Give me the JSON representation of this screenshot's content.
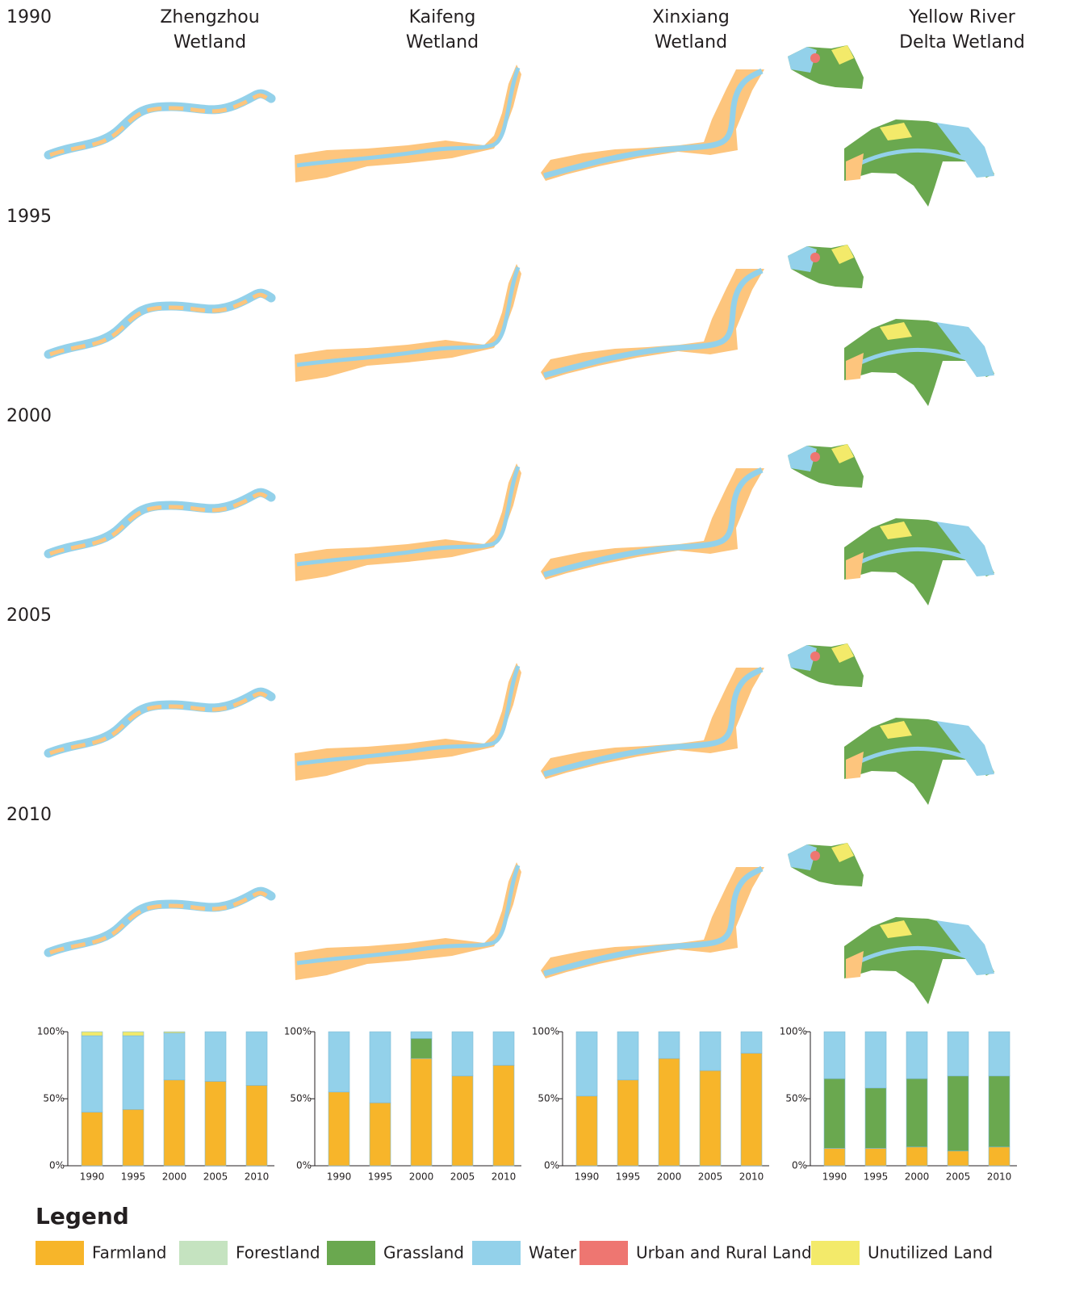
{
  "row_labels": [
    "1990",
    "1995",
    "2000",
    "2005",
    "2010"
  ],
  "columns": [
    {
      "title": [
        "Zhengzhou",
        "Wetland"
      ]
    },
    {
      "title": [
        "Kaifeng",
        "Wetland"
      ]
    },
    {
      "title": [
        "Xinxiang",
        "Wetland"
      ]
    },
    {
      "title": [
        "Yellow River",
        "Delta Wetland"
      ]
    }
  ],
  "legend_title": "Legend",
  "chart_data": [
    {
      "type": "bar",
      "stacked": true,
      "categories": [
        "1990",
        "1995",
        "2000",
        "2005",
        "2010"
      ],
      "ylim": [
        0,
        100
      ],
      "yticks": [
        {
          "value": 0,
          "label": "0%"
        },
        {
          "value": 50,
          "label": "50%"
        },
        {
          "value": 100,
          "label": "100%"
        }
      ],
      "series": [
        {
          "name": "Farmland",
          "color": "#f7b52a",
          "values": [
            40,
            42,
            64,
            63,
            60
          ]
        },
        {
          "name": "Forestland",
          "color": "#c5e3c0",
          "values": [
            0,
            0,
            0,
            0,
            0
          ]
        },
        {
          "name": "Grassland",
          "color": "#6aa84f",
          "values": [
            0,
            0,
            0,
            0,
            0
          ]
        },
        {
          "name": "Water",
          "color": "#93d1ea",
          "values": [
            57,
            55,
            35,
            37,
            40
          ]
        },
        {
          "name": "Urban and Rural Land",
          "color": "#ee7671",
          "values": [
            0,
            0,
            0,
            0,
            0
          ]
        },
        {
          "name": "Unutilized Land",
          "color": "#f3ea6a",
          "values": [
            3,
            3,
            1,
            0,
            0
          ]
        }
      ]
    },
    {
      "type": "bar",
      "stacked": true,
      "categories": [
        "1990",
        "1995",
        "2000",
        "2005",
        "2010"
      ],
      "ylim": [
        0,
        100
      ],
      "yticks": [
        {
          "value": 0,
          "label": "0%"
        },
        {
          "value": 50,
          "label": "50%"
        },
        {
          "value": 100,
          "label": "100%"
        }
      ],
      "series": [
        {
          "name": "Farmland",
          "color": "#f7b52a",
          "values": [
            55,
            47,
            80,
            67,
            75
          ]
        },
        {
          "name": "Forestland",
          "color": "#c5e3c0",
          "values": [
            0,
            0,
            0,
            0,
            0
          ]
        },
        {
          "name": "Grassland",
          "color": "#6aa84f",
          "values": [
            0,
            0,
            15,
            0,
            0
          ]
        },
        {
          "name": "Water",
          "color": "#93d1ea",
          "values": [
            45,
            53,
            5,
            33,
            25
          ]
        },
        {
          "name": "Urban and Rural Land",
          "color": "#ee7671",
          "values": [
            0,
            0,
            0,
            0,
            0
          ]
        },
        {
          "name": "Unutilized Land",
          "color": "#f3ea6a",
          "values": [
            0,
            0,
            0,
            0,
            0
          ]
        }
      ]
    },
    {
      "type": "bar",
      "stacked": true,
      "categories": [
        "1990",
        "1995",
        "2000",
        "2005",
        "2010"
      ],
      "ylim": [
        0,
        100
      ],
      "yticks": [
        {
          "value": 0,
          "label": "0%"
        },
        {
          "value": 50,
          "label": "50%"
        },
        {
          "value": 100,
          "label": "100%"
        }
      ],
      "series": [
        {
          "name": "Farmland",
          "color": "#f7b52a",
          "values": [
            52,
            64,
            80,
            71,
            84
          ]
        },
        {
          "name": "Forestland",
          "color": "#c5e3c0",
          "values": [
            0,
            0,
            0,
            0,
            0
          ]
        },
        {
          "name": "Grassland",
          "color": "#6aa84f",
          "values": [
            0,
            0,
            0,
            0,
            0
          ]
        },
        {
          "name": "Water",
          "color": "#93d1ea",
          "values": [
            48,
            36,
            20,
            29,
            16
          ]
        },
        {
          "name": "Urban and Rural Land",
          "color": "#ee7671",
          "values": [
            0,
            0,
            0,
            0,
            0
          ]
        },
        {
          "name": "Unutilized Land",
          "color": "#f3ea6a",
          "values": [
            0,
            0,
            0,
            0,
            0
          ]
        }
      ]
    },
    {
      "type": "bar",
      "stacked": true,
      "categories": [
        "1990",
        "1995",
        "2000",
        "2005",
        "2010"
      ],
      "ylim": [
        0,
        100
      ],
      "yticks": [
        {
          "value": 0,
          "label": "0%"
        },
        {
          "value": 50,
          "label": "50%"
        },
        {
          "value": 100,
          "label": "100%"
        }
      ],
      "series": [
        {
          "name": "Farmland",
          "color": "#f7b52a",
          "values": [
            13,
            13,
            14,
            11,
            14
          ]
        },
        {
          "name": "Forestland",
          "color": "#c5e3c0",
          "values": [
            0,
            0,
            0,
            0,
            0
          ]
        },
        {
          "name": "Grassland",
          "color": "#6aa84f",
          "values": [
            52,
            45,
            51,
            56,
            53
          ]
        },
        {
          "name": "Water",
          "color": "#93d1ea",
          "values": [
            35,
            42,
            35,
            33,
            33
          ]
        },
        {
          "name": "Urban and Rural Land",
          "color": "#ee7671",
          "values": [
            0,
            0,
            0,
            0,
            0
          ]
        },
        {
          "name": "Unutilized Land",
          "color": "#f3ea6a",
          "values": [
            0,
            0,
            0,
            0,
            0
          ]
        }
      ]
    }
  ]
}
